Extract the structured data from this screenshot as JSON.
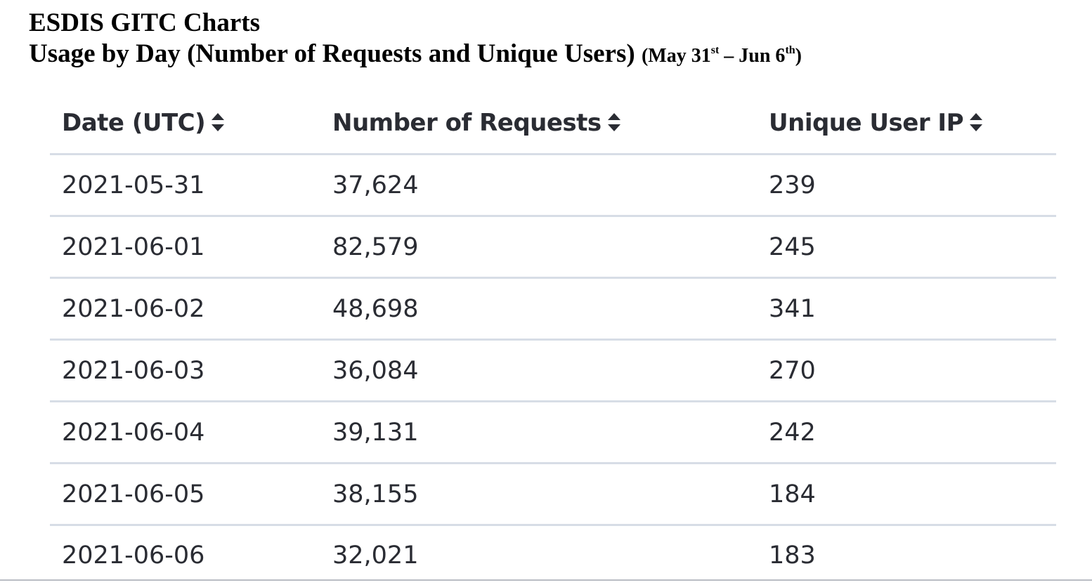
{
  "heading": {
    "title": "ESDIS GITC Charts",
    "subtitle": "Usage by Day (Number of Requests and Unique Users)",
    "range_open": "(May 31",
    "range_sup1": "st",
    "range_mid": " – Jun 6",
    "range_sup2": "th",
    "range_close": ")"
  },
  "table": {
    "columns": [
      "Date (UTC)",
      "Number of Requests",
      "Unique User IP"
    ],
    "rows": [
      [
        "2021-05-31",
        "37,624",
        "239"
      ],
      [
        "2021-06-01",
        "82,579",
        "245"
      ],
      [
        "2021-06-02",
        "48,698",
        "341"
      ],
      [
        "2021-06-03",
        "36,084",
        "270"
      ],
      [
        "2021-06-04",
        "39,131",
        "242"
      ],
      [
        "2021-06-05",
        "38,155",
        "184"
      ],
      [
        "2021-06-06",
        "32,021",
        "183"
      ]
    ]
  },
  "icons": {
    "sort": "sort-icon"
  }
}
